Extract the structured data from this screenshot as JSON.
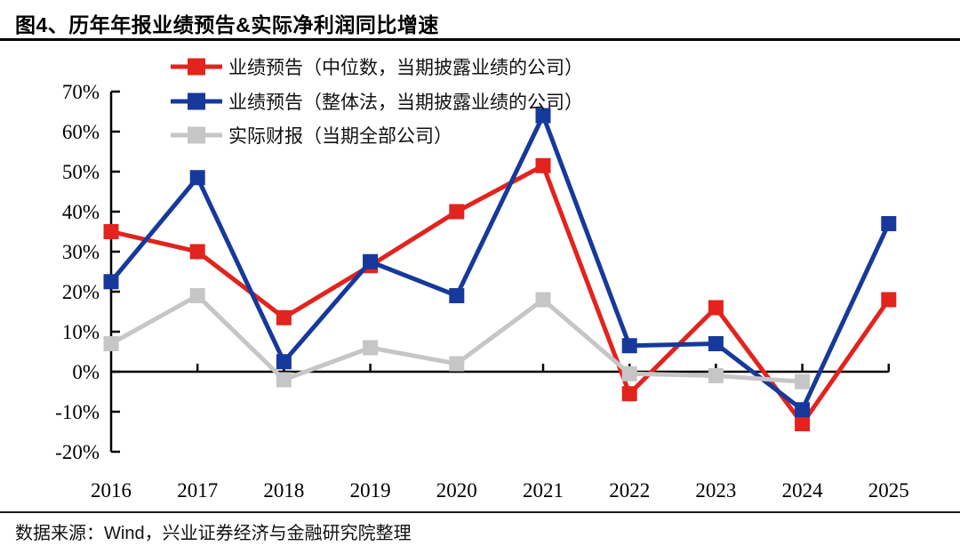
{
  "header": {
    "title": "图4、历年年报业绩预告&实际净利润同比增速"
  },
  "chart_data": {
    "type": "line",
    "title": "历年年报业绩预告&实际净利润同比增速",
    "x_labels": [
      "2016",
      "2017",
      "2018",
      "2019",
      "2020",
      "2021",
      "2022",
      "2023",
      "2024",
      "2025"
    ],
    "y_tick_labels": [
      "70%",
      "60%",
      "50%",
      "40%",
      "30%",
      "20%",
      "10%",
      "0%",
      "-10%",
      "-20%"
    ],
    "ylim": [
      -20,
      70
    ],
    "ytick_step": 10,
    "grid": false,
    "legend_position": "top-left-inside",
    "series": [
      {
        "name": "业绩预告（中位数，当期披露业绩的公司）",
        "color": "#e2231e",
        "values": [
          35,
          30,
          13.5,
          26.5,
          40,
          51.5,
          -5.5,
          16,
          -13,
          18
        ]
      },
      {
        "name": "业绩预告（整体法，当期披露业绩的公司）",
        "color": "#16399b",
        "values": [
          22.5,
          48.5,
          2.5,
          27.5,
          19,
          64,
          6.5,
          7,
          -9.5,
          37
        ]
      },
      {
        "name": "实际财报（当期全部公司）",
        "color": "#c6c6c6",
        "values": [
          7,
          19,
          -2,
          6,
          2,
          18,
          -0.5,
          -1,
          -2.5,
          null
        ]
      }
    ]
  },
  "footer": {
    "source": "数据来源：Wind，兴业证券经济与金融研究院整理"
  }
}
